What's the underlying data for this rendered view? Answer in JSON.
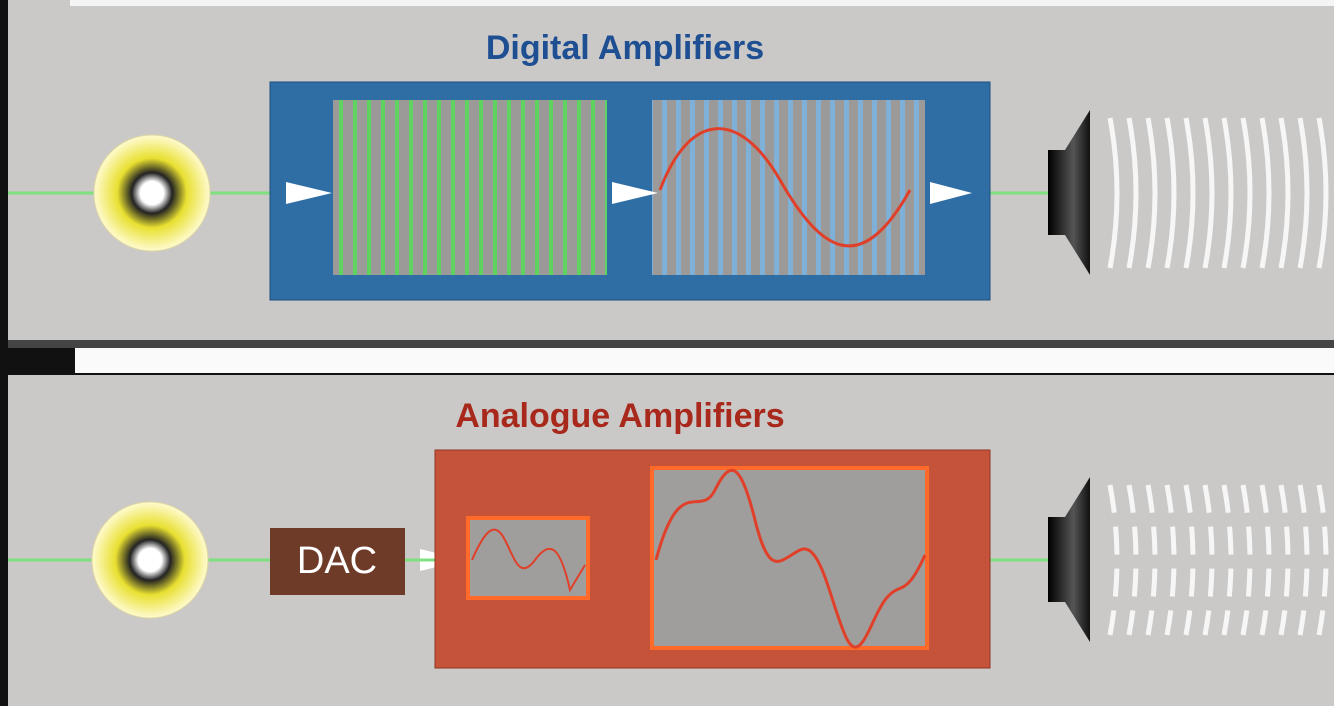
{
  "panels": [
    {
      "title": "Digital Amplifiers"
    },
    {
      "title": "Analogue Amplifiers",
      "dac": "DAC"
    }
  ]
}
